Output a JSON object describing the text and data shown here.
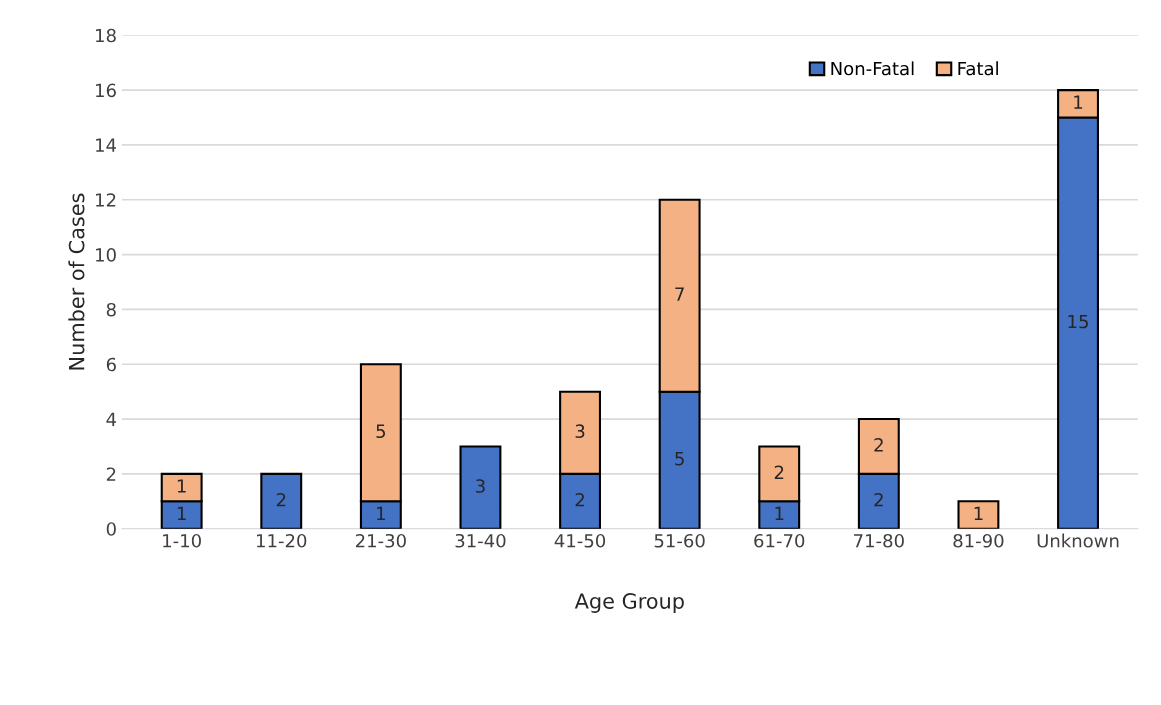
{
  "chart_data": {
    "type": "bar",
    "stacked": true,
    "xlabel": "Age Group",
    "ylabel": "Number of Cases",
    "categories": [
      "1-10",
      "11-20",
      "21-30",
      "31-40",
      "41-50",
      "51-60",
      "61-70",
      "71-80",
      "81-90",
      "Unknown"
    ],
    "series": [
      {
        "name": "Non-Fatal",
        "color": "#4472c4",
        "values": [
          1,
          2,
          1,
          3,
          2,
          5,
          1,
          2,
          0,
          15
        ],
        "value_labels": [
          "1",
          "2",
          "1",
          "3",
          "2",
          "5",
          "1",
          "2",
          null,
          "15"
        ]
      },
      {
        "name": "Fatal",
        "color": "#f4b183",
        "values": [
          1,
          0,
          5,
          0,
          3,
          7,
          2,
          2,
          1,
          1
        ],
        "value_labels": [
          "1",
          null,
          "5",
          null,
          "3",
          "7",
          "2",
          "2",
          "1",
          "1"
        ]
      }
    ],
    "ylim": [
      0,
      18
    ],
    "yticks": [
      0,
      2,
      4,
      6,
      8,
      10,
      12,
      14,
      16,
      18
    ],
    "grid": "y",
    "legend": "top right"
  }
}
